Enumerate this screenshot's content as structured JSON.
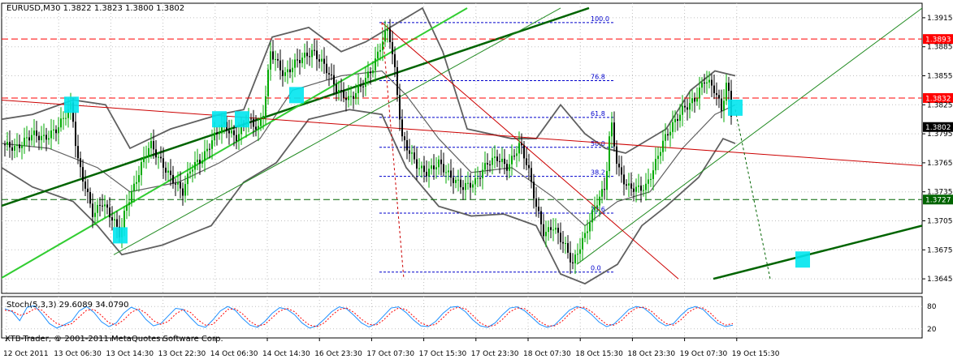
{
  "window": {
    "header": "EURUSD,M30  1.3822 1.3823 1.3800 1.3802",
    "copyright": "XTB-Trader, © 2001-2011 MetaQuotes Software Corp."
  },
  "chart_data": [
    {
      "type": "candlestick",
      "symbol": "EURUSD",
      "timeframe": "M30",
      "ohlc_header": {
        "open": 1.3822,
        "high": 1.3823,
        "low": 1.38,
        "close": 1.3802
      },
      "ylim": [
        1.363,
        1.393
      ],
      "y_ticks": [
        1.3915,
        1.3885,
        1.3855,
        1.3825,
        1.3795,
        1.3765,
        1.3735,
        1.3705,
        1.3675,
        1.3645
      ],
      "x_tick_labels": [
        "12 Oct 2011",
        "13 Oct 06:30",
        "13 Oct 14:30",
        "13 Oct 22:30",
        "14 Oct 06:30",
        "14 Oct 14:30",
        "16 Oct 23:30",
        "17 Oct 07:30",
        "17 Oct 15:30",
        "17 Oct 23:30",
        "18 Oct 07:30",
        "18 Oct 15:30",
        "18 Oct 23:30",
        "19 Oct 07:30",
        "19 Oct 15:30"
      ],
      "price_path": [
        [
          0,
          1.3785
        ],
        [
          20,
          1.378
        ],
        [
          40,
          1.3795
        ],
        [
          55,
          1.379
        ],
        [
          70,
          1.38
        ],
        [
          88,
          1.3825
        ],
        [
          95,
          1.377
        ],
        [
          105,
          1.374
        ],
        [
          115,
          1.371
        ],
        [
          125,
          1.3725
        ],
        [
          140,
          1.3705
        ],
        [
          148,
          1.369
        ],
        [
          155,
          1.372
        ],
        [
          165,
          1.374
        ],
        [
          175,
          1.3765
        ],
        [
          185,
          1.3785
        ],
        [
          195,
          1.377
        ],
        [
          210,
          1.375
        ],
        [
          225,
          1.3735
        ],
        [
          235,
          1.376
        ],
        [
          250,
          1.377
        ],
        [
          262,
          1.379
        ],
        [
          275,
          1.3805
        ],
        [
          290,
          1.379
        ],
        [
          305,
          1.381
        ],
        [
          318,
          1.38
        ],
        [
          325,
          1.382
        ],
        [
          333,
          1.388
        ],
        [
          340,
          1.387
        ],
        [
          350,
          1.3855
        ],
        [
          365,
          1.387
        ],
        [
          385,
          1.388
        ],
        [
          400,
          1.3865
        ],
        [
          415,
          1.384
        ],
        [
          430,
          1.383
        ],
        [
          445,
          1.3845
        ],
        [
          460,
          1.3865
        ],
        [
          470,
          1.389
        ],
        [
          478,
          1.3905
        ],
        [
          486,
          1.386
        ],
        [
          495,
          1.379
        ],
        [
          505,
          1.3775
        ],
        [
          515,
          1.376
        ],
        [
          525,
          1.3755
        ],
        [
          540,
          1.3765
        ],
        [
          555,
          1.375
        ],
        [
          570,
          1.374
        ],
        [
          585,
          1.3745
        ],
        [
          600,
          1.3765
        ],
        [
          612,
          1.377
        ],
        [
          625,
          1.376
        ],
        [
          640,
          1.3785
        ],
        [
          650,
          1.376
        ],
        [
          660,
          1.372
        ],
        [
          670,
          1.369
        ],
        [
          680,
          1.37
        ],
        [
          695,
          1.368
        ],
        [
          705,
          1.366
        ],
        [
          712,
          1.3675
        ],
        [
          720,
          1.369
        ],
        [
          728,
          1.371
        ],
        [
          735,
          1.3725
        ],
        [
          745,
          1.374
        ],
        [
          752,
          1.381
        ],
        [
          760,
          1.376
        ],
        [
          772,
          1.374
        ],
        [
          785,
          1.3738
        ],
        [
          795,
          1.374
        ],
        [
          805,
          1.376
        ],
        [
          815,
          1.3785
        ],
        [
          825,
          1.38
        ],
        [
          840,
          1.382
        ],
        [
          855,
          1.383
        ],
        [
          868,
          1.3852
        ],
        [
          880,
          1.384
        ],
        [
          888,
          1.382
        ],
        [
          895,
          1.385
        ],
        [
          902,
          1.3802
        ]
      ],
      "bollinger": {
        "upper": [
          [
            0,
            1.381
          ],
          [
            40,
            1.3815
          ],
          [
            90,
            1.383
          ],
          [
            130,
            1.3825
          ],
          [
            160,
            1.378
          ],
          [
            210,
            1.38
          ],
          [
            270,
            1.3815
          ],
          [
            300,
            1.382
          ],
          [
            335,
            1.3895
          ],
          [
            380,
            1.3905
          ],
          [
            420,
            1.388
          ],
          [
            450,
            1.389
          ],
          [
            480,
            1.3905
          ],
          [
            520,
            1.3925
          ],
          [
            545,
            1.388
          ],
          [
            575,
            1.38
          ],
          [
            630,
            1.379
          ],
          [
            660,
            1.379
          ],
          [
            690,
            1.3825
          ],
          [
            720,
            1.3795
          ],
          [
            745,
            1.378
          ],
          [
            770,
            1.3775
          ],
          [
            820,
            1.38
          ],
          [
            850,
            1.384
          ],
          [
            880,
            1.386
          ],
          [
            905,
            1.3855
          ]
        ],
        "lower": [
          [
            0,
            1.376
          ],
          [
            40,
            1.374
          ],
          [
            90,
            1.3725
          ],
          [
            120,
            1.37
          ],
          [
            150,
            1.367
          ],
          [
            200,
            1.368
          ],
          [
            260,
            1.37
          ],
          [
            300,
            1.3745
          ],
          [
            340,
            1.3765
          ],
          [
            380,
            1.381
          ],
          [
            430,
            1.382
          ],
          [
            470,
            1.3815
          ],
          [
            500,
            1.376
          ],
          [
            540,
            1.372
          ],
          [
            580,
            1.371
          ],
          [
            620,
            1.3712
          ],
          [
            660,
            1.37
          ],
          [
            690,
            1.365
          ],
          [
            720,
            1.364
          ],
          [
            760,
            1.366
          ],
          [
            790,
            1.37
          ],
          [
            820,
            1.372
          ],
          [
            860,
            1.375
          ],
          [
            890,
            1.379
          ],
          [
            905,
            1.3785
          ]
        ],
        "middle": [
          [
            0,
            1.3785
          ],
          [
            60,
            1.378
          ],
          [
            120,
            1.376
          ],
          [
            160,
            1.3735
          ],
          [
            220,
            1.3745
          ],
          [
            270,
            1.3765
          ],
          [
            320,
            1.379
          ],
          [
            360,
            1.384
          ],
          [
            420,
            1.3855
          ],
          [
            470,
            1.386
          ],
          [
            500,
            1.3835
          ],
          [
            540,
            1.379
          ],
          [
            580,
            1.3755
          ],
          [
            630,
            1.376
          ],
          [
            680,
            1.373
          ],
          [
            720,
            1.37
          ],
          [
            760,
            1.3725
          ],
          [
            800,
            1.3735
          ],
          [
            840,
            1.378
          ],
          [
            880,
            1.3815
          ],
          [
            905,
            1.3825
          ]
        ]
      },
      "horizontal_lines": [
        {
          "price": 1.3893,
          "label": "1.3893",
          "color": "#ff0000",
          "style": "dashed"
        },
        {
          "price": 1.3832,
          "label": "1.3832",
          "color": "#ff0000",
          "style": "dashed"
        },
        {
          "price": 1.3727,
          "label": "1.3727",
          "color": "#006400",
          "style": "dashed"
        }
      ],
      "current_price": {
        "price": 1.3802,
        "label": "1.3802"
      },
      "fibonacci": {
        "high": 1.391,
        "low": 1.3652,
        "levels": [
          {
            "label": "100.0",
            "price": 1.391
          },
          {
            "label": "76.8",
            "price": 1.385
          },
          {
            "label": "61.8",
            "price": 1.3812
          },
          {
            "label": "50.0",
            "price": 1.3781
          },
          {
            "label": "38.2",
            "price": 1.3751
          },
          {
            "label": "23.6",
            "price": 1.3713
          },
          {
            "label": "0.0",
            "price": 1.3652
          }
        ]
      },
      "trendlines": [
        {
          "color": "#006400",
          "weight": 2.5,
          "from": [
            0,
            1.372
          ],
          "to": [
            725,
            1.3925
          ]
        },
        {
          "color": "#32cd32",
          "weight": 2,
          "from": [
            0,
            1.3645
          ],
          "to": [
            575,
            1.3925
          ]
        },
        {
          "color": "#228b22",
          "weight": 1,
          "from": [
            140,
            1.367
          ],
          "to": [
            690,
            1.3925
          ]
        },
        {
          "color": "#228b22",
          "weight": 1,
          "from": [
            710,
            1.366
          ],
          "to": [
            1135,
            1.3925
          ]
        },
        {
          "color": "#006400",
          "weight": 2.5,
          "from": [
            878,
            1.3645
          ],
          "to": [
            1135,
            1.37
          ]
        },
        {
          "color": "#cc0000",
          "weight": 1,
          "from": [
            0,
            1.383
          ],
          "to": [
            1135,
            1.3762
          ]
        },
        {
          "color": "#cc0000",
          "weight": 1,
          "from": [
            470,
            1.391
          ],
          "to": [
            835,
            1.3645
          ]
        },
        {
          "color": "#cc0000",
          "weight": 1,
          "style": "dashed",
          "from": [
            470,
            1.391
          ],
          "to": [
            497,
            1.3645
          ]
        },
        {
          "color": "#006400",
          "weight": 1,
          "style": "dashed",
          "from": [
            905,
            1.382
          ],
          "to": [
            948,
            1.3645
          ]
        }
      ],
      "markers": [
        {
          "x": 88,
          "price": 1.3825
        },
        {
          "x": 148,
          "price": 1.369
        },
        {
          "x": 270,
          "price": 1.381
        },
        {
          "x": 298,
          "price": 1.381
        },
        {
          "x": 365,
          "price": 1.3835
        },
        {
          "x": 905,
          "price": 1.3822
        },
        {
          "x": 988,
          "price": 1.3665
        }
      ],
      "colors": {
        "bullish": "#00aa00",
        "bearish": "#000000",
        "grid": "#c0c0c0",
        "band": "#606060",
        "marker": "#00e5ee"
      }
    },
    {
      "type": "line",
      "name": "Stoch(5,3,3)",
      "label": "Stoch(5,3,3) 29.6089 34.0790",
      "ylim": [
        0,
        100
      ],
      "y_ticks": [
        80,
        20
      ],
      "y_tick_labels": [
        "80",
        "20"
      ],
      "levels": [
        80,
        20
      ],
      "series": [
        {
          "name": "main",
          "color": "#1e90ff",
          "values": [
            74,
            66,
            42,
            78,
            82,
            60,
            34,
            22,
            31,
            41,
            68,
            80,
            64,
            39,
            26,
            36,
            62,
            78,
            70,
            45,
            28,
            34,
            55,
            75,
            72,
            50,
            30,
            24,
            44,
            68,
            80,
            70,
            48,
            30,
            24,
            40,
            62,
            77,
            72,
            58,
            36,
            22,
            28,
            46,
            66,
            79,
            74,
            56,
            36,
            25,
            34,
            55,
            76,
            79,
            64,
            44,
            28,
            26,
            40,
            62,
            78,
            80,
            66,
            44,
            28,
            24,
            36,
            58,
            76,
            79,
            68,
            50,
            32,
            24,
            30,
            50,
            70,
            80,
            74,
            58,
            38,
            26,
            33,
            52,
            72,
            80,
            76,
            60,
            40,
            28,
            34,
            56,
            74,
            80,
            72,
            52,
            34,
            26,
            30
          ]
        },
        {
          "name": "signal",
          "color": "#ff0000",
          "values": [
            70,
            68,
            56,
            62,
            74,
            70,
            50,
            34,
            28,
            34,
            52,
            70,
            72,
            56,
            36,
            30,
            44,
            64,
            74,
            62,
            42,
            32,
            40,
            60,
            72,
            64,
            44,
            30,
            32,
            52,
            72,
            74,
            60,
            40,
            28,
            32,
            50,
            68,
            75,
            66,
            46,
            30,
            26,
            36,
            56,
            72,
            76,
            64,
            46,
            32,
            30,
            44,
            64,
            76,
            72,
            54,
            36,
            28,
            32,
            50,
            70,
            78,
            74,
            56,
            36,
            26,
            30,
            46,
            66,
            76,
            74,
            58,
            40,
            28,
            28,
            40,
            60,
            76,
            78,
            66,
            48,
            32,
            30,
            42,
            62,
            76,
            78,
            68,
            50,
            34,
            30,
            44,
            64,
            76,
            76,
            62,
            42,
            30,
            34
          ]
        }
      ]
    }
  ]
}
